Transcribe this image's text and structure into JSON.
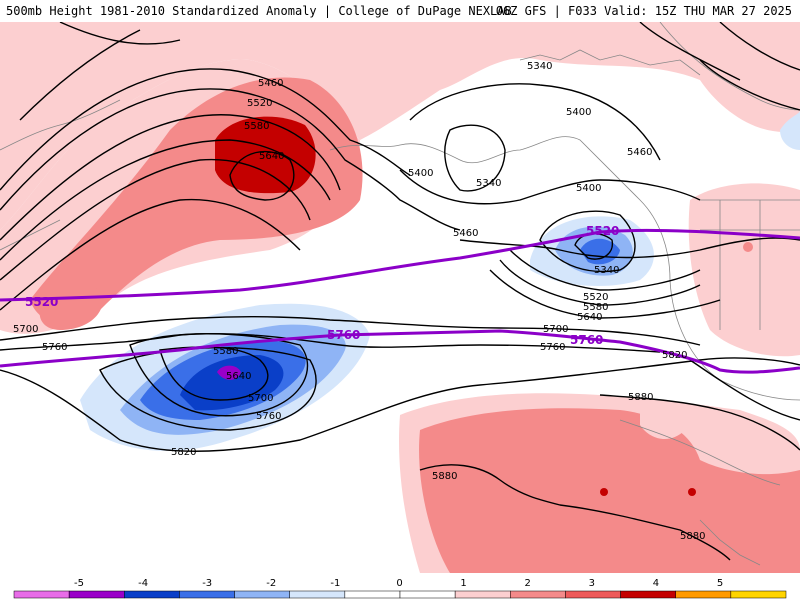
{
  "title": {
    "left": "500mb Height 1981-2010 Standardized Anomaly | College of DuPage NEXLAB",
    "right": "06Z GFS | F033 Valid: 15Z THU MAR 27 2025"
  },
  "contour_labels": [
    {
      "id": "c5460a",
      "text": "5460"
    },
    {
      "id": "c5520a",
      "text": "5520"
    },
    {
      "id": "c5580a",
      "text": "5580"
    },
    {
      "id": "c5640a",
      "text": "5640"
    },
    {
      "id": "c5340a",
      "text": "5340"
    },
    {
      "id": "c5400a",
      "text": "5400"
    },
    {
      "id": "c5340b",
      "text": "5340"
    },
    {
      "id": "c5400b",
      "text": "5400"
    },
    {
      "id": "c5460b",
      "text": "5460"
    },
    {
      "id": "c5400c",
      "text": "5400"
    },
    {
      "id": "c5460c",
      "text": "5460"
    },
    {
      "id": "c5340c",
      "text": "5340"
    },
    {
      "id": "c5520b",
      "text": "5520"
    },
    {
      "id": "c5580b",
      "text": "5580"
    },
    {
      "id": "c5640b",
      "text": "5640"
    },
    {
      "id": "c5700a",
      "text": "5700"
    },
    {
      "id": "c5760a",
      "text": "5760"
    },
    {
      "id": "c5700b",
      "text": "5700"
    },
    {
      "id": "c5760b",
      "text": "5760"
    },
    {
      "id": "c5580c",
      "text": "5580"
    },
    {
      "id": "c5640c",
      "text": "5640"
    },
    {
      "id": "c5700c",
      "text": "5700"
    },
    {
      "id": "c5760c",
      "text": "5760"
    },
    {
      "id": "c5820a",
      "text": "5820"
    },
    {
      "id": "c5820b",
      "text": "5820"
    },
    {
      "id": "c5880a",
      "text": "5880"
    },
    {
      "id": "c5880b",
      "text": "5880"
    },
    {
      "id": "c5880c",
      "text": "5880"
    }
  ],
  "highlight_labels": [
    {
      "id": "p5520a",
      "text": "5520"
    },
    {
      "id": "p5520b",
      "text": "5520"
    },
    {
      "id": "p5760a",
      "text": "5760"
    },
    {
      "id": "p5760b",
      "text": "5760"
    }
  ],
  "legend": {
    "ticks": [
      "-5",
      "-4",
      "-3",
      "-2",
      "-1",
      "0",
      "1",
      "2",
      "3",
      "4",
      "5"
    ],
    "colors": [
      "#e86ce8",
      "#9a00c8",
      "#0a3fc8",
      "#3a6fe8",
      "#8fb4f5",
      "#d5e6fb",
      "#ffffff",
      "#ffffff",
      "#fccfd0",
      "#f48a8a",
      "#ee5a5a",
      "#c40000",
      "#ff9a00",
      "#ffd400"
    ]
  },
  "colors": {
    "highlight_contour": "#8b00c8",
    "contour": "#000000"
  }
}
